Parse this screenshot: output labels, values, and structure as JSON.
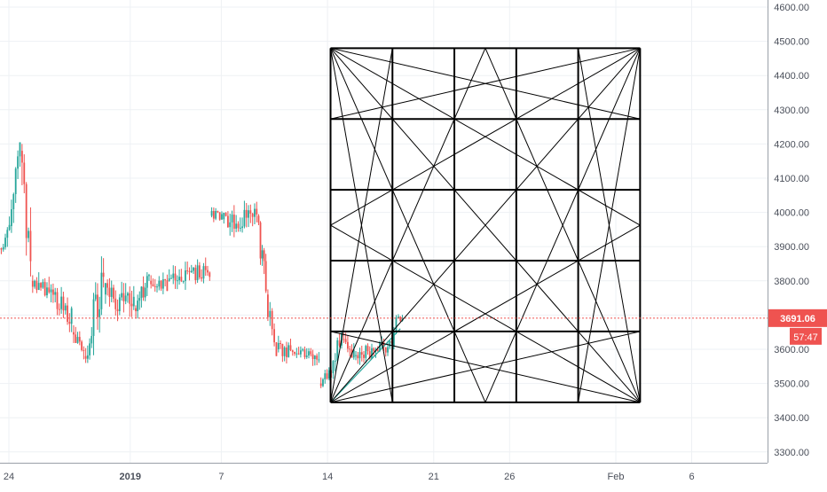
{
  "chart_data": {
    "type": "candlestick",
    "title": "",
    "xlabel": "",
    "ylabel": "",
    "ylim": [
      3275,
      4620
    ],
    "y_ticks": [
      3300,
      3400,
      3500,
      3600,
      3700,
      3800,
      3900,
      4000,
      4100,
      4200,
      4300,
      4400,
      4500,
      4600
    ],
    "y_tick_labels": [
      "3300.00",
      "3400.00",
      "3500.00",
      "3600.00",
      "3700.00",
      "3800.00",
      "3900.00",
      "4000.00",
      "4100.00",
      "4200.00",
      "4300.00",
      "4400.00",
      "4500.00",
      "4600.00"
    ],
    "x_tick_labels": [
      "24",
      "2019",
      "7",
      "14",
      "21",
      "26",
      "Feb",
      "6"
    ],
    "x_tick_days": [
      0,
      8,
      14,
      21,
      28,
      33,
      40,
      45
    ],
    "x_range_days": [
      -0.7,
      48.9
    ],
    "last_price": "3691.06",
    "last_price_value": 3691.06,
    "countdown": "57:47",
    "grid": true,
    "colors": {
      "up": "#26a69a",
      "down": "#ef5350",
      "price_line": "#ef5350",
      "overlay": "#000000",
      "grid": "#eef1f4",
      "axis_text": "#4a4f5a"
    },
    "segments": [
      {
        "d0": -0.7,
        "d1": 0.1,
        "p0": 3880,
        "p1": 3960,
        "lo": 3860,
        "hi": 4010
      },
      {
        "d0": 0.1,
        "d1": 0.8,
        "p0": 3960,
        "p1": 4180,
        "lo": 3940,
        "hi": 4205
      },
      {
        "d0": 0.8,
        "d1": 1.5,
        "p0": 4180,
        "p1": 3830,
        "lo": 3800,
        "hi": 4200
      },
      {
        "d0": 1.5,
        "d1": 4.2,
        "p0": 3800,
        "p1": 3700,
        "lo": 3650,
        "hi": 3830
      },
      {
        "d0": 4.2,
        "d1": 5.0,
        "p0": 3650,
        "p1": 3580,
        "lo": 3545,
        "hi": 3690
      },
      {
        "d0": 5.0,
        "d1": 6.3,
        "p0": 3580,
        "p1": 3820,
        "lo": 3560,
        "hi": 3880
      },
      {
        "d0": 6.3,
        "d1": 8.3,
        "p0": 3760,
        "p1": 3720,
        "lo": 3660,
        "hi": 3880
      },
      {
        "d0": 8.3,
        "d1": 9.3,
        "p0": 3720,
        "p1": 3820,
        "lo": 3690,
        "hi": 3870
      },
      {
        "d0": 9.3,
        "d1": 10.5,
        "p0": 3800,
        "p1": 3790,
        "lo": 3730,
        "hi": 3850
      },
      {
        "d0": 10.5,
        "d1": 13.3,
        "p0": 3800,
        "p1": 3830,
        "lo": 3720,
        "hi": 3870
      },
      {
        "d0": 13.3,
        "d1": 14.1,
        "p0": 3990,
        "p1": 3990,
        "lo": 3940,
        "hi": 4030
      },
      {
        "d0": 14.1,
        "d1": 16.4,
        "p0": 3980,
        "p1": 3985,
        "lo": 3900,
        "hi": 4070
      },
      {
        "d0": 16.4,
        "d1": 17.0,
        "p0": 3990,
        "p1": 3780,
        "lo": 3760,
        "hi": 3995
      },
      {
        "d0": 17.0,
        "d1": 17.7,
        "p0": 3760,
        "p1": 3600,
        "lo": 3580,
        "hi": 3775
      },
      {
        "d0": 17.7,
        "d1": 20.5,
        "p0": 3600,
        "p1": 3590,
        "lo": 3520,
        "hi": 3640
      },
      {
        "d0": 20.5,
        "d1": 21.3,
        "p0": 3500,
        "p1": 3530,
        "lo": 3460,
        "hi": 3560
      },
      {
        "d0": 21.3,
        "d1": 22.0,
        "p0": 3530,
        "p1": 3650,
        "lo": 3510,
        "hi": 3680
      },
      {
        "d0": 22.0,
        "d1": 22.8,
        "p0": 3630,
        "p1": 3580,
        "lo": 3550,
        "hi": 3660
      },
      {
        "d0": 22.8,
        "d1": 25.3,
        "p0": 3580,
        "p1": 3610,
        "lo": 3550,
        "hi": 3670
      },
      {
        "d0": 25.3,
        "d1": 25.6,
        "p0": 3610,
        "p1": 3690,
        "lo": 3600,
        "hi": 3700
      },
      {
        "d0": 25.6,
        "d1": 26.0,
        "p0": 3690,
        "p1": 3691,
        "lo": 3670,
        "hi": 3720
      }
    ],
    "overlay_box": {
      "d0": 21.2,
      "d1": 41.6,
      "p0": 3445,
      "p1": 4480,
      "cols": 5,
      "rows": 5,
      "lines": [
        [
          0,
          0,
          1,
          1
        ],
        [
          0,
          1,
          1,
          0
        ],
        [
          0,
          0,
          1,
          0.5
        ],
        [
          0,
          0,
          0.5,
          1
        ],
        [
          0,
          0,
          1,
          0.2
        ],
        [
          0,
          0,
          0.2,
          1
        ],
        [
          0,
          1,
          1,
          0.5
        ],
        [
          0,
          1,
          0.5,
          0
        ],
        [
          0,
          1,
          1,
          0.8
        ],
        [
          0,
          1,
          0.2,
          0
        ],
        [
          1,
          0,
          0,
          0.5
        ],
        [
          1,
          0,
          0.5,
          1
        ],
        [
          1,
          0,
          0,
          0.2
        ],
        [
          1,
          0,
          0.8,
          1
        ],
        [
          1,
          1,
          0,
          0.5
        ],
        [
          1,
          1,
          0.5,
          0
        ],
        [
          1,
          1,
          0,
          0.8
        ],
        [
          1,
          1,
          0.8,
          0
        ]
      ]
    },
    "trend_lines": [
      {
        "d0": 21.2,
        "p0": 3445,
        "d1": 25.8,
        "p1": 3660,
        "color": "#26a69a"
      }
    ]
  }
}
